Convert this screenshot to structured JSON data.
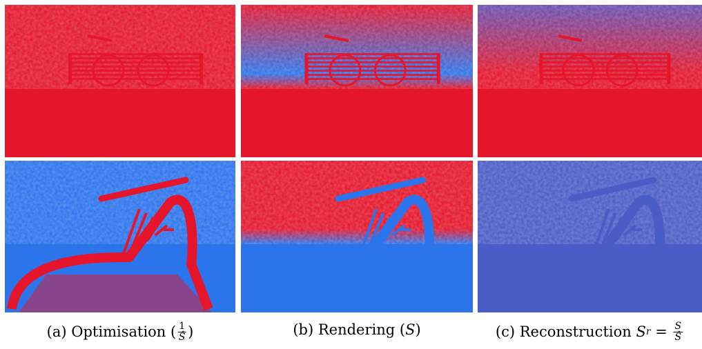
{
  "panels": [
    {
      "caption": [
        {
          "text": "(a) Optimisation ("
        },
        {
          "num": "1",
          "den": "Ŝ"
        },
        {
          "text": ")"
        }
      ]
    },
    {
      "caption": [
        {
          "text": "(b) Rendering ("
        },
        {
          "italic": "S"
        },
        {
          "text": ")"
        }
      ]
    },
    {
      "caption": [
        {
          "text": "(c) Reconstruction "
        },
        {
          "italic": "S"
        },
        {
          "sub": "r"
        },
        {
          "text": " = "
        },
        {
          "num": "S",
          "den": "Ŝ"
        }
      ]
    }
  ]
}
